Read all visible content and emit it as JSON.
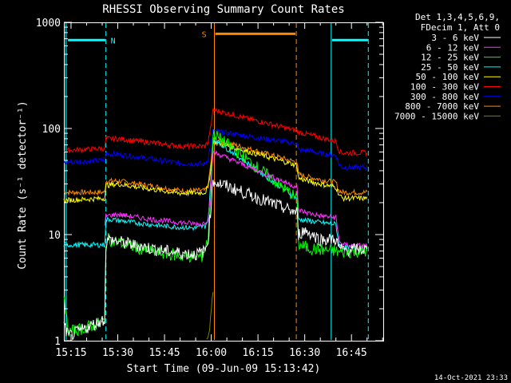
{
  "chart_data": {
    "type": "line",
    "title": "RHESSI Observing Summary Count Rates",
    "xlabel": "Start Time (09-Jun-09 15:13:42)",
    "ylabel": "Count Rate (s⁻¹ detector⁻¹)",
    "yscale": "log",
    "ylim": [
      1,
      1000
    ],
    "xlim_minutes": [
      -2.3,
      100.2
    ],
    "x_ticks": [
      {
        "m": 0,
        "label": "15:15"
      },
      {
        "m": 15,
        "label": "15:30"
      },
      {
        "m": 30,
        "label": "15:45"
      },
      {
        "m": 45,
        "label": "16:00"
      },
      {
        "m": 60,
        "label": "16:15"
      },
      {
        "m": 75,
        "label": "16:30"
      },
      {
        "m": 90,
        "label": "16:45"
      }
    ],
    "y_ticks": [
      {
        "v": 1,
        "label": "1"
      },
      {
        "v": 10,
        "label": "10"
      },
      {
        "v": 100,
        "label": "100"
      },
      {
        "v": 1000,
        "label": "1000"
      }
    ],
    "legend_header": [
      "Det 1,3,4,5,6,9,",
      "FDecim 1, Att 0"
    ],
    "series": [
      {
        "name": "3 - 6 keV",
        "color": "#ffffff",
        "points": [
          [
            -2.3,
            1.4
          ],
          [
            -0.8,
            1.1
          ],
          [
            10.8,
            1.6
          ],
          [
            11.2,
            8
          ],
          [
            12,
            9
          ],
          [
            20,
            8
          ],
          [
            30,
            7
          ],
          [
            40,
            6.5
          ],
          [
            43,
            7
          ],
          [
            44,
            9
          ],
          [
            45,
            20
          ],
          [
            45.6,
            32
          ],
          [
            72.5,
            16
          ],
          [
            73,
            10
          ],
          [
            75,
            11
          ],
          [
            80,
            9
          ],
          [
            82,
            9
          ],
          [
            85,
            9
          ],
          [
            86,
            7.5
          ],
          [
            87,
            7.2
          ],
          [
            95,
            7.2
          ]
        ]
      },
      {
        "name": "6 - 12 keV",
        "color": "#ff33ff",
        "points": [
          [
            10.8,
            12
          ],
          [
            11.2,
            15
          ],
          [
            15,
            15.5
          ],
          [
            25,
            14
          ],
          [
            35,
            13
          ],
          [
            42,
            12.5
          ],
          [
            44,
            14
          ],
          [
            45,
            30
          ],
          [
            45.6,
            60
          ],
          [
            72.5,
            28
          ],
          [
            73,
            17
          ],
          [
            76,
            16
          ],
          [
            80,
            15
          ],
          [
            85,
            14.5
          ],
          [
            86,
            9
          ],
          [
            87,
            8
          ],
          [
            95,
            7.8
          ]
        ]
      },
      {
        "name": "12 - 25 keV",
        "color": "#00ff00",
        "points": [
          [
            -2.3,
            2.4
          ],
          [
            -0.8,
            1.2
          ],
          [
            10.8,
            1.5
          ],
          [
            11.2,
            8.5
          ],
          [
            12,
            9
          ],
          [
            18,
            8
          ],
          [
            25,
            7
          ],
          [
            35,
            6.3
          ],
          [
            42,
            6.2
          ],
          [
            44,
            9
          ],
          [
            45,
            30
          ],
          [
            45.6,
            90
          ],
          [
            72.5,
            22
          ],
          [
            73,
            8
          ],
          [
            76,
            7.5
          ],
          [
            80,
            7.2
          ],
          [
            85,
            7
          ],
          [
            86,
            6.8
          ],
          [
            95,
            7
          ]
        ]
      },
      {
        "name": "25 - 50 keV",
        "color": "#00ffff",
        "points": [
          [
            -2.3,
            8
          ],
          [
            10.8,
            8
          ],
          [
            11.2,
            13.5
          ],
          [
            12,
            14
          ],
          [
            20,
            13
          ],
          [
            30,
            12
          ],
          [
            40,
            11.5
          ],
          [
            43,
            12
          ],
          [
            44,
            14
          ],
          [
            45,
            35
          ],
          [
            45.6,
            80
          ],
          [
            72.5,
            22
          ],
          [
            73,
            14
          ],
          [
            76,
            13.5
          ],
          [
            80,
            13
          ],
          [
            85,
            12.5
          ],
          [
            86,
            8
          ],
          [
            87,
            7.5
          ],
          [
            95,
            7.5
          ]
        ]
      },
      {
        "name": "50 - 100 keV",
        "color": "#ffff00",
        "points": [
          [
            -2.3,
            21
          ],
          [
            10.8,
            22
          ],
          [
            11.2,
            29
          ],
          [
            15,
            30
          ],
          [
            25,
            27
          ],
          [
            35,
            24.5
          ],
          [
            43,
            25
          ],
          [
            44,
            28
          ],
          [
            45,
            45
          ],
          [
            45.6,
            75
          ],
          [
            72.5,
            45
          ],
          [
            73,
            34
          ],
          [
            76,
            32
          ],
          [
            80,
            30
          ],
          [
            85,
            28
          ],
          [
            86,
            24
          ],
          [
            87,
            22
          ],
          [
            95,
            22
          ]
        ]
      },
      {
        "name": "100 - 300 keV",
        "color": "#ff0000",
        "points": [
          [
            -2.3,
            62
          ],
          [
            10.8,
            65
          ],
          [
            11.2,
            80
          ],
          [
            15,
            80
          ],
          [
            25,
            74
          ],
          [
            35,
            68
          ],
          [
            43,
            68
          ],
          [
            44,
            75
          ],
          [
            45,
            110
          ],
          [
            45.6,
            150
          ],
          [
            72.5,
            95
          ],
          [
            73,
            92
          ],
          [
            76,
            88
          ],
          [
            80,
            82
          ],
          [
            85,
            76
          ],
          [
            86,
            62
          ],
          [
            87,
            59
          ],
          [
            95,
            59
          ]
        ]
      },
      {
        "name": "300 - 800 keV",
        "color": "#0000ff",
        "points": [
          [
            -2.3,
            48
          ],
          [
            10.8,
            50
          ],
          [
            11.2,
            58
          ],
          [
            15,
            57
          ],
          [
            25,
            52
          ],
          [
            35,
            47
          ],
          [
            43,
            46
          ],
          [
            44,
            52
          ],
          [
            45,
            75
          ],
          [
            45.6,
            95
          ],
          [
            72.5,
            72
          ],
          [
            73,
            62
          ],
          [
            76,
            63
          ],
          [
            80,
            58
          ],
          [
            85,
            56
          ],
          [
            86,
            46
          ],
          [
            87,
            43
          ],
          [
            95,
            43
          ]
        ]
      },
      {
        "name": "800 - 7000 keV",
        "color": "#ff8800",
        "points": [
          [
            -2.3,
            25
          ],
          [
            10.8,
            25
          ],
          [
            11.2,
            32
          ],
          [
            15,
            32
          ],
          [
            25,
            29
          ],
          [
            35,
            26
          ],
          [
            43,
            26
          ],
          [
            44,
            29
          ],
          [
            45,
            50
          ],
          [
            45.6,
            80
          ],
          [
            72.5,
            48
          ],
          [
            73,
            37
          ],
          [
            76,
            35
          ],
          [
            80,
            33
          ],
          [
            85,
            31
          ],
          [
            86,
            26
          ],
          [
            87,
            25
          ],
          [
            95,
            25
          ]
        ]
      },
      {
        "name": "7000 - 15000 keV",
        "color": "#808000",
        "points": [
          [
            43.5,
            1
          ],
          [
            44.5,
            1.3
          ],
          [
            45,
            2
          ],
          [
            45.6,
            3
          ]
        ]
      }
    ],
    "attenuator_lines": [
      {
        "m": -1.6,
        "color": "#00ffff",
        "style": "solid"
      },
      {
        "m": 11.2,
        "color": "#00ffff",
        "style": "dashed"
      },
      {
        "m": 83.5,
        "color": "#00ffff",
        "style": "solid"
      },
      {
        "m": 95.4,
        "color": "#00ffff",
        "style": "dashed"
      },
      {
        "m": 46.0,
        "color": "#ff8800",
        "style": "solid"
      },
      {
        "m": 72.3,
        "color": "#ff8800",
        "style": "dashed"
      }
    ],
    "flag_bars": [
      {
        "label": "N",
        "color": "#00ffff",
        "m_start": -1.0,
        "m_end": 11.0,
        "value": 680,
        "label_m": 13.5
      },
      {
        "label": "",
        "color": "#00ffff",
        "m_start": 83.8,
        "m_end": 95.3,
        "value": 680,
        "label_m": null
      },
      {
        "label": "S",
        "color": "#ff8800",
        "m_start": 46.3,
        "m_end": 72.0,
        "value": 780,
        "label_m": 42.7
      }
    ],
    "timestamp": "14-Oct-2021 23:33"
  }
}
